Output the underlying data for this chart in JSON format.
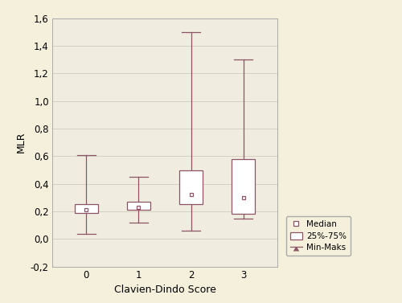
{
  "categories": [
    0,
    1,
    2,
    3
  ],
  "box_data": [
    {
      "median": 0.21,
      "q1": 0.19,
      "q3": 0.25,
      "min": 0.04,
      "max": 0.61
    },
    {
      "median": 0.23,
      "q1": 0.21,
      "q3": 0.27,
      "min": 0.12,
      "max": 0.45
    },
    {
      "median": 0.32,
      "q1": 0.25,
      "q3": 0.5,
      "min": 0.06,
      "max": 1.5
    },
    {
      "median": 0.3,
      "q1": 0.18,
      "q3": 0.58,
      "min": 0.15,
      "max": 1.3
    }
  ],
  "box_color": "#8B5565",
  "box_facecolor": "#FFFFFF",
  "xlabel": "Clavien-Dindo Score",
  "ylabel": "MLR",
  "ylim": [
    -0.2,
    1.6
  ],
  "ytick_labels": [
    "-0,2",
    "0,0",
    "0,2",
    "0,4",
    "0,6",
    "0,8",
    "1,0",
    "1,2",
    "1,4",
    "1,6"
  ],
  "ytick_vals": [
    -0.2,
    0.0,
    0.2,
    0.4,
    0.6,
    0.8,
    1.0,
    1.2,
    1.4,
    1.6
  ],
  "background_color": "#F5F0DC",
  "plot_bg_color": "#F0EDE0",
  "grid_color": "#D0CCBC",
  "box_width": 0.45,
  "cap_ratio": 0.4,
  "legend_labels": [
    "Median",
    "25%-75%",
    "Min-Maks"
  ],
  "label_fontsize": 9,
  "tick_fontsize": 8.5
}
